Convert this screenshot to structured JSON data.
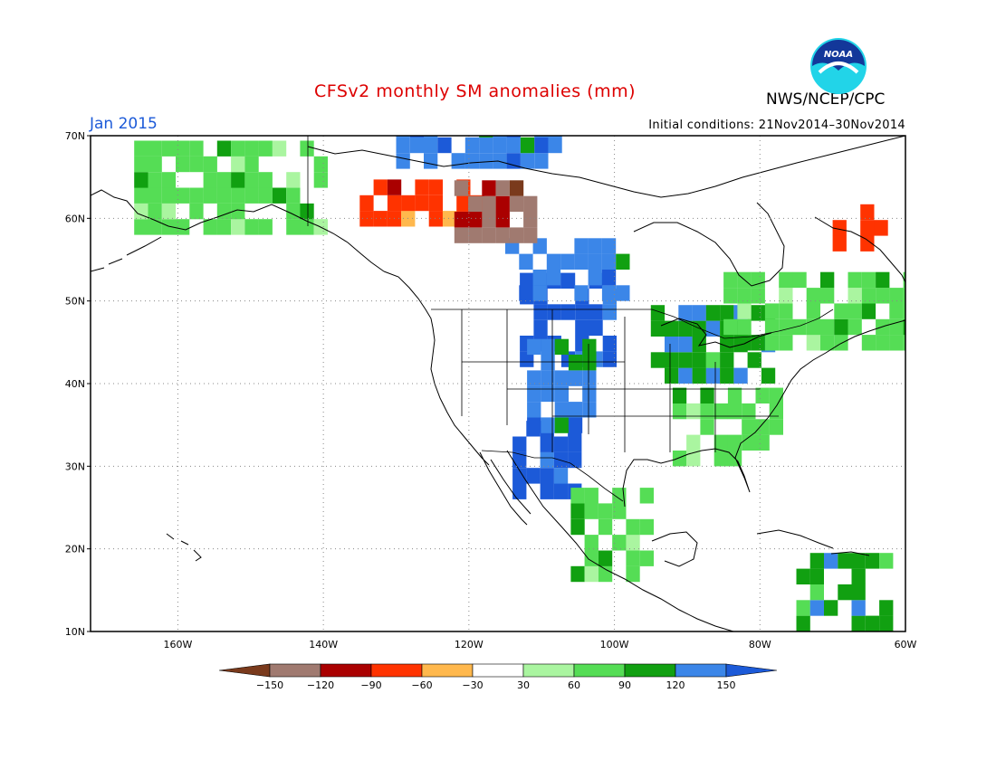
{
  "title": "CFSv2 monthly SM anomalies (mm)",
  "agency": "NWS/NCEP/CPC",
  "logo_text": "NOAA",
  "valid_month": "Jan 2015",
  "initial_conditions": "Initial conditions: 21Nov2014–30Nov2014",
  "map": {
    "lat_range": [
      10,
      70
    ],
    "lon_range": [
      -172,
      -60
    ],
    "lat_ticks": [
      {
        "value": 70,
        "label": "70N"
      },
      {
        "value": 60,
        "label": "60N"
      },
      {
        "value": 50,
        "label": "50N"
      },
      {
        "value": 40,
        "label": "40N"
      },
      {
        "value": 30,
        "label": "30N"
      },
      {
        "value": 20,
        "label": "20N"
      },
      {
        "value": 10,
        "label": "10N"
      }
    ],
    "lon_ticks": [
      {
        "value": -160,
        "label": "160W"
      },
      {
        "value": -140,
        "label": "140W"
      },
      {
        "value": -120,
        "label": "120W"
      },
      {
        "value": -100,
        "label": "100W"
      },
      {
        "value": -80,
        "label": "80W"
      },
      {
        "value": -60,
        "label": "60W"
      }
    ],
    "grid": true
  },
  "colorbar": {
    "boundaries": [
      "−150",
      "−120",
      "−90",
      "−60",
      "−30",
      "30",
      "60",
      "90",
      "120",
      "150"
    ],
    "colors": [
      "#7a3a1c",
      "#a07a70",
      "#aa0000",
      "#ff3300",
      "#ffb84d",
      "#ffffff",
      "#aaf5a0",
      "#55dd55",
      "#11a011",
      "#3b86e8",
      "#1c5ad8"
    ]
  },
  "anomaly_regions": [
    {
      "name": "northern-plains-wet",
      "level": "150",
      "lon": [
        -113,
        -100
      ],
      "lat": [
        42,
        52
      ]
    },
    {
      "name": "southwest-wet",
      "level": "150",
      "lon": [
        -114,
        -106
      ],
      "lat": [
        26,
        34
      ]
    },
    {
      "name": "central-rockies-wet",
      "level": "120",
      "lon": [
        -112,
        -104
      ],
      "lat": [
        34,
        44
      ]
    },
    {
      "name": "canada-prairies-wet",
      "level": "120",
      "lon": [
        -115,
        -98
      ],
      "lat": [
        50,
        56
      ]
    },
    {
      "name": "great-lakes-wet",
      "level": "90",
      "lon": [
        -95,
        -78
      ],
      "lat": [
        40,
        48
      ]
    },
    {
      "name": "eastern-canada-moist",
      "level": "60",
      "lon": [
        -85,
        -60
      ],
      "lat": [
        44,
        52
      ]
    },
    {
      "name": "southeast-moist",
      "level": "60",
      "lon": [
        -92,
        -78
      ],
      "lat": [
        30,
        38
      ]
    },
    {
      "name": "mexico-moist",
      "level": "60",
      "lon": [
        -106,
        -96
      ],
      "lat": [
        16,
        26
      ]
    },
    {
      "name": "alaska-mixed",
      "level": "60",
      "lon": [
        -166,
        -140
      ],
      "lat": [
        58,
        68
      ]
    },
    {
      "name": "yukon-dry",
      "level": "-60",
      "lon": [
        -135,
        -118
      ],
      "lat": [
        59,
        64
      ]
    },
    {
      "name": "nw-territories-very-dry",
      "level": "-120",
      "lon": [
        -122,
        -112
      ],
      "lat": [
        57,
        63
      ]
    },
    {
      "name": "labrador-dry",
      "level": "-60",
      "lon": [
        -70,
        -62
      ],
      "lat": [
        56,
        60
      ]
    },
    {
      "name": "arctic-coast-wet",
      "level": "120",
      "lon": [
        -130,
        -108
      ],
      "lat": [
        66,
        70
      ]
    },
    {
      "name": "caribbean-wet",
      "level": "90",
      "lon": [
        -75,
        -62
      ],
      "lat": [
        10,
        19
      ]
    }
  ]
}
